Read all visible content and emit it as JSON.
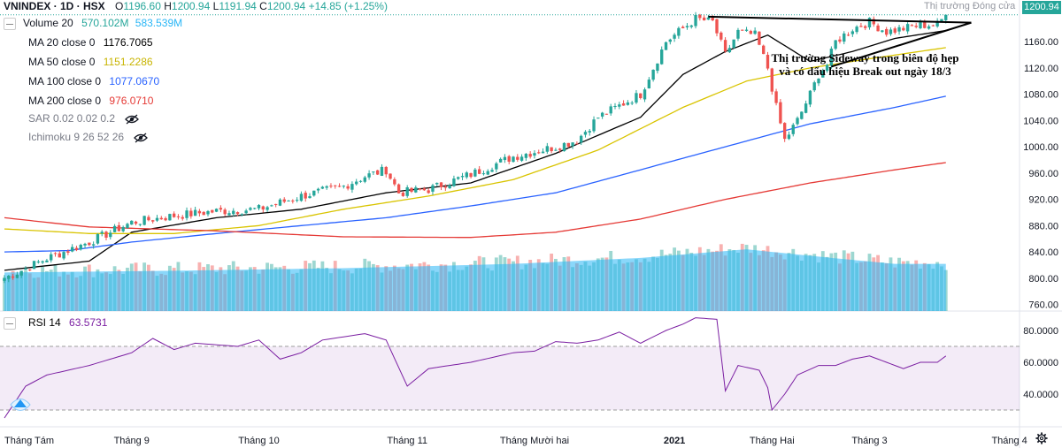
{
  "header": {
    "symbol": "VNINDEX · 1D · HSX",
    "open_label": "O",
    "open": "1196.60",
    "high_label": "H",
    "high": "1200.94",
    "low_label": "L",
    "low": "1191.94",
    "close_label": "C",
    "close": "1200.94",
    "change": "+14.85 (+1.25%)"
  },
  "legend": [
    {
      "label": "Volume 20",
      "value": "570.102M",
      "value2": "583.539M",
      "color": "#26a69a"
    },
    {
      "label": "MA 20 close 0",
      "value": "1176.7065",
      "color": "#000000"
    },
    {
      "label": "MA 50 close 0",
      "value": "1151.2286",
      "color": "#d9c400"
    },
    {
      "label": "MA 100 close 0",
      "value": "1077.0670",
      "color": "#2962ff"
    },
    {
      "label": "MA 200 close 0",
      "value": "976.0710",
      "color": "#e53935"
    },
    {
      "label": "SAR 0.02 0.02 0.2",
      "value": "",
      "color": "#787b86",
      "hidden": true
    },
    {
      "label": "Ichimoku 9 26 52 26",
      "value": "",
      "color": "#787b86",
      "hidden": true
    }
  ],
  "rsi": {
    "label": "RSI 14",
    "value": "63.5731",
    "color": "#7b1fa2"
  },
  "price_tag": "1200.94",
  "market_status": "Thị trường Đóng cửa",
  "annotation": {
    "line1": "Thị trường Sideway trong biên độ hẹp",
    "line2": "và có dấu hiệu Break out ngày 18/3"
  },
  "chart_data": [
    {
      "type": "candlestick",
      "title": "VNINDEX 1D HSX",
      "price_axis": {
        "ylim": [
          750,
          1210
        ],
        "ticks": [
          760,
          800,
          840,
          880,
          920,
          960,
          1000,
          1040,
          1080,
          1120,
          1160
        ]
      },
      "price_tick_labels": [
        "760.00",
        "800.00",
        "840.00",
        "880.00",
        "920.00",
        "960.00",
        "1000.00",
        "1040.00",
        "1080.00",
        "1120.00",
        "1160.00"
      ],
      "time_labels": [
        "Tháng Tám",
        "Tháng 9",
        "Tháng 10",
        "Tháng 11",
        "Tháng Mười hai",
        "2021",
        "Tháng Hai",
        "Tháng 3",
        "Tháng 4"
      ],
      "time_label_bars": [
        0,
        30,
        60,
        95,
        125,
        158,
        181,
        204,
        237
      ],
      "n_bars": 223,
      "anchors": [
        [
          0,
          800
        ],
        [
          10,
          830
        ],
        [
          20,
          855
        ],
        [
          30,
          885
        ],
        [
          40,
          895
        ],
        [
          50,
          902
        ],
        [
          60,
          905
        ],
        [
          70,
          925
        ],
        [
          80,
          940
        ],
        [
          85,
          955
        ],
        [
          90,
          965
        ],
        [
          93,
          930
        ],
        [
          100,
          935
        ],
        [
          110,
          958
        ],
        [
          120,
          985
        ],
        [
          130,
          1000
        ],
        [
          135,
          1010
        ],
        [
          140,
          1045
        ],
        [
          150,
          1080
        ],
        [
          156,
          1160
        ],
        [
          160,
          1180
        ],
        [
          163,
          1195
        ],
        [
          167,
          1190
        ],
        [
          170,
          1140
        ],
        [
          173,
          1175
        ],
        [
          177,
          1170
        ],
        [
          180,
          1120
        ],
        [
          182,
          1060
        ],
        [
          184,
          1010
        ],
        [
          187,
          1040
        ],
        [
          190,
          1080
        ],
        [
          192,
          1110
        ],
        [
          194,
          1125
        ],
        [
          196,
          1160
        ],
        [
          200,
          1180
        ],
        [
          204,
          1190
        ],
        [
          208,
          1175
        ],
        [
          212,
          1180
        ],
        [
          216,
          1185
        ],
        [
          220,
          1186
        ],
        [
          222,
          1201
        ]
      ],
      "ma_series": [
        {
          "name": "MA 20 close 0",
          "color": "#000000",
          "anchors": [
            [
              0,
              812
            ],
            [
              20,
              826
            ],
            [
              30,
              870
            ],
            [
              50,
              892
            ],
            [
              70,
              905
            ],
            [
              90,
              930
            ],
            [
              110,
              945
            ],
            [
              130,
              990
            ],
            [
              150,
              1045
            ],
            [
              160,
              1110
            ],
            [
              170,
              1145
            ],
            [
              180,
              1170
            ],
            [
              190,
              1130
            ],
            [
              200,
              1145
            ],
            [
              210,
              1165
            ],
            [
              222,
              1177
            ]
          ]
        },
        {
          "name": "MA 50 close 0",
          "color": "#d9c400",
          "anchors": [
            [
              0,
              875
            ],
            [
              20,
              868
            ],
            [
              40,
              868
            ],
            [
              60,
              880
            ],
            [
              80,
              905
            ],
            [
              100,
              925
            ],
            [
              120,
              950
            ],
            [
              140,
              995
            ],
            [
              160,
              1060
            ],
            [
              175,
              1100
            ],
            [
              190,
              1120
            ],
            [
              205,
              1135
            ],
            [
              222,
              1151
            ]
          ]
        },
        {
          "name": "MA 100 close 0",
          "color": "#2962ff",
          "anchors": [
            [
              0,
              840
            ],
            [
              15,
              842
            ],
            [
              30,
              855
            ],
            [
              50,
              868
            ],
            [
              70,
              880
            ],
            [
              90,
              892
            ],
            [
              110,
              910
            ],
            [
              130,
              930
            ],
            [
              150,
              965
            ],
            [
              170,
              1000
            ],
            [
              190,
              1035
            ],
            [
              210,
              1060
            ],
            [
              222,
              1077
            ]
          ]
        },
        {
          "name": "MA 200 close 0",
          "color": "#e53935",
          "anchors": [
            [
              0,
              892
            ],
            [
              20,
              878
            ],
            [
              50,
              872
            ],
            [
              80,
              863
            ],
            [
              110,
              862
            ],
            [
              130,
              870
            ],
            [
              150,
              890
            ],
            [
              170,
              920
            ],
            [
              190,
              945
            ],
            [
              210,
              965
            ],
            [
              222,
              976
            ]
          ]
        }
      ],
      "volume": {
        "color_up": "#26a69a",
        "color_down": "#ef5350",
        "ma_color": "#29b6f6",
        "rel_ma_anchors": [
          [
            0,
            0.45
          ],
          [
            40,
            0.47
          ],
          [
            80,
            0.5
          ],
          [
            120,
            0.55
          ],
          [
            150,
            0.62
          ],
          [
            175,
            0.72
          ],
          [
            195,
            0.62
          ],
          [
            210,
            0.55
          ],
          [
            222,
            0.55
          ]
        ]
      },
      "trendlines": [
        {
          "from": [
            166,
            1198
          ],
          "to": [
            228,
            1189
          ]
        },
        {
          "from": [
            195,
            1122
          ],
          "to": [
            228,
            1189
          ]
        }
      ]
    },
    {
      "type": "line",
      "title": "RSI 14",
      "ylim": [
        20,
        90
      ],
      "ticks": [
        40,
        60,
        80
      ],
      "tick_labels": [
        "40.0000",
        "60.0000",
        "80.0000"
      ],
      "band": [
        30,
        70
      ],
      "band_color": "#7b1fa2",
      "series": [
        {
          "name": "RSI 14",
          "color": "#7b1fa2",
          "anchors": [
            [
              0,
              25
            ],
            [
              5,
              45
            ],
            [
              10,
              52
            ],
            [
              20,
              58
            ],
            [
              30,
              66
            ],
            [
              35,
              75
            ],
            [
              40,
              68
            ],
            [
              45,
              72
            ],
            [
              55,
              70
            ],
            [
              60,
              74
            ],
            [
              65,
              62
            ],
            [
              70,
              66
            ],
            [
              75,
              74
            ],
            [
              85,
              78
            ],
            [
              90,
              74
            ],
            [
              95,
              45
            ],
            [
              100,
              56
            ],
            [
              110,
              60
            ],
            [
              120,
              66
            ],
            [
              125,
              67
            ],
            [
              130,
              73
            ],
            [
              135,
              72
            ],
            [
              140,
              74
            ],
            [
              145,
              79
            ],
            [
              150,
              72
            ],
            [
              156,
              80
            ],
            [
              160,
              84
            ],
            [
              163,
              88
            ],
            [
              168,
              87
            ],
            [
              170,
              42
            ],
            [
              173,
              58
            ],
            [
              178,
              55
            ],
            [
              180,
              44
            ],
            [
              181,
              30
            ],
            [
              184,
              40
            ],
            [
              187,
              52
            ],
            [
              192,
              58
            ],
            [
              196,
              58
            ],
            [
              200,
              62
            ],
            [
              204,
              64
            ],
            [
              208,
              60
            ],
            [
              212,
              56
            ],
            [
              216,
              60
            ],
            [
              220,
              60
            ],
            [
              222,
              64
            ]
          ]
        }
      ]
    }
  ]
}
